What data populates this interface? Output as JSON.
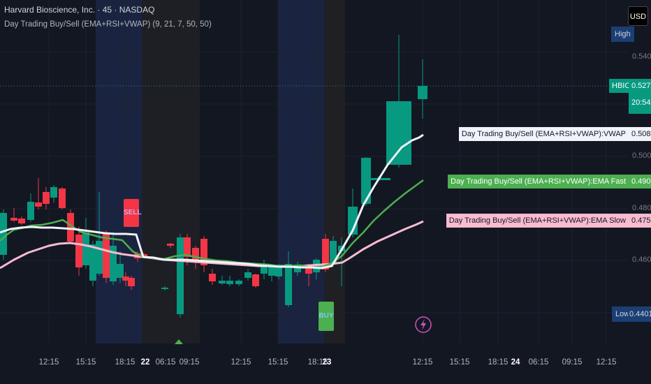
{
  "header": {
    "symbol_title": "Harvard Bioscience, Inc. · 45 · NASDAQ",
    "indicator_title": "Day Trading Buy/Sell (EMA+RSI+VWAP) (9, 21, 7, 50, 50)"
  },
  "currency_button": "USD",
  "price_axis": {
    "labels": [
      "0.5400",
      "0.5000",
      "0.4800",
      "0.4600"
    ],
    "high": {
      "tag": "High",
      "value": ""
    },
    "low": {
      "tag": "Low",
      "value": "0.4401"
    },
    "current": {
      "symbol": "HBIO",
      "value": "0.5271",
      "countdown": "20:54"
    }
  },
  "indicator_labels": [
    {
      "name": "Day Trading Buy/Sell (EMA+RSI+VWAP):VWAP",
      "value": "0.5082",
      "color": "#f0f3fa"
    },
    {
      "name": "Day Trading Buy/Sell (EMA+RSI+VWAP):EMA Fast",
      "value": "0.4907",
      "color": "#4caf50"
    },
    {
      "name": "Day Trading Buy/Sell (EMA+RSI+VWAP):EMA Slow",
      "value": "0.4753",
      "color": "#f8bbd0"
    }
  ],
  "signals": {
    "sell": "SELL",
    "buy": "BUY"
  },
  "time_axis": [
    {
      "label": "12:15",
      "bold": false
    },
    {
      "label": "15:15",
      "bold": false
    },
    {
      "label": "18:15",
      "bold": false
    },
    {
      "label": "22",
      "bold": true
    },
    {
      "label": "06:15",
      "bold": false
    },
    {
      "label": "09:15",
      "bold": false
    },
    {
      "label": "12:15",
      "bold": false
    },
    {
      "label": "15:15",
      "bold": false
    },
    {
      "label": "18:15",
      "bold": false
    },
    {
      "label": "23",
      "bold": true
    },
    {
      "label": "12:15",
      "bold": false
    },
    {
      "label": "15:15",
      "bold": false
    },
    {
      "label": "18:15",
      "bold": false
    },
    {
      "label": "24",
      "bold": true
    },
    {
      "label": "06:15",
      "bold": false
    },
    {
      "label": "09:15",
      "bold": false
    },
    {
      "label": "12:15",
      "bold": false
    }
  ],
  "colors": {
    "up": "#089981",
    "down": "#f23645",
    "vwap": "#f0f3fa",
    "ema_fast": "#4caf50",
    "ema_slow": "#f8bbd0"
  },
  "icons": {
    "event": "lightning-icon"
  }
}
